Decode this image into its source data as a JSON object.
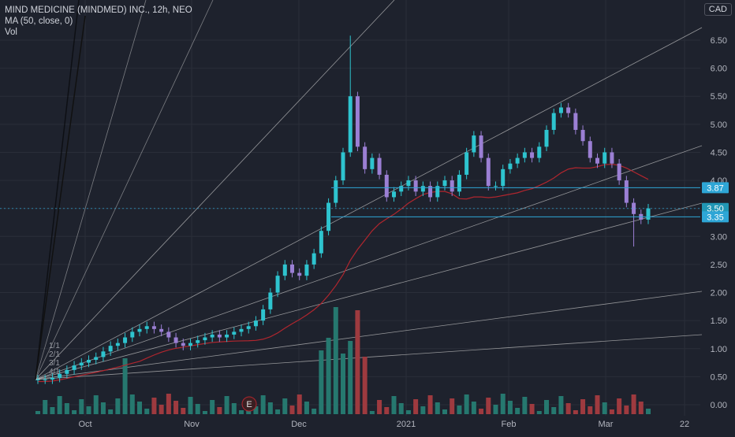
{
  "header": {
    "title": "MIND MEDICINE (MINDMED) INC., 12h, NEO",
    "indicator": "MA (50, close, 0)",
    "volume_label": "Vol",
    "currency": "CAD"
  },
  "colors": {
    "background": "#1e222d",
    "up": "#26a69a",
    "up_candle": "#2ec4cf",
    "down_candle": "#9b7fd4",
    "volume_up": "#26786f",
    "volume_down": "#9e3a3f",
    "ma": "#b0262e",
    "fan": "#c8c8c8",
    "level": "#2ea6d6",
    "axis_text": "#b2b5be"
  },
  "icons": {
    "earnings_marker": "earnings-e-icon"
  },
  "chart_data": {
    "type": "candlestick",
    "title": "MIND MEDICINE (MINDMED) INC., 12h, NEO",
    "ylim": [
      -0.1,
      6.9
    ],
    "yticks": [
      "0.00",
      "0.50",
      "1.00",
      "1.50",
      "2.00",
      "2.50",
      "3.00",
      "3.50",
      "4.00",
      "4.50",
      "5.00",
      "5.50",
      "6.00",
      "6.50"
    ],
    "xticks": [
      "Oct",
      "Nov",
      "Dec",
      "2021",
      "Feb",
      "Mar",
      "22"
    ],
    "series": [
      {
        "name": "MA (50, close, 0)",
        "type": "line"
      },
      {
        "name": "Vol",
        "type": "bar"
      }
    ],
    "price_labels": [
      {
        "text": "3.87",
        "value": 3.87
      },
      {
        "text": "3.50",
        "value": 3.5,
        "current": true
      },
      {
        "text": "3.35",
        "value": 3.35
      }
    ],
    "horizontal_lines": [
      3.87,
      3.35
    ],
    "fan_labels": [
      "1/1",
      "2/1",
      "3/1",
      "4/1"
    ],
    "earnings_marker": "E",
    "approx_path": [
      0.45,
      0.45,
      0.48,
      0.55,
      0.62,
      0.7,
      0.75,
      0.8,
      0.85,
      0.95,
      1.05,
      1.1,
      1.2,
      1.3,
      1.35,
      1.4,
      1.35,
      1.3,
      1.2,
      1.1,
      1.05,
      1.1,
      1.15,
      1.2,
      1.25,
      1.2,
      1.25,
      1.3,
      1.35,
      1.4,
      1.5,
      1.7,
      2.0,
      2.3,
      2.5,
      2.35,
      2.3,
      2.5,
      2.7,
      3.1,
      3.6,
      4.0,
      4.5,
      5.5,
      4.6,
      4.2,
      4.4,
      4.1,
      3.7,
      3.8,
      3.9,
      4.0,
      3.8,
      3.9,
      3.7,
      3.9,
      4.0,
      3.8,
      4.1,
      4.5,
      4.8,
      4.4,
      3.9,
      3.9,
      4.2,
      4.3,
      4.4,
      4.5,
      4.4,
      4.6,
      4.9,
      5.2,
      5.3,
      5.2,
      4.9,
      4.7,
      4.4,
      4.3,
      4.5,
      4.3,
      4.0,
      3.6,
      3.4,
      3.3,
      3.5
    ]
  }
}
